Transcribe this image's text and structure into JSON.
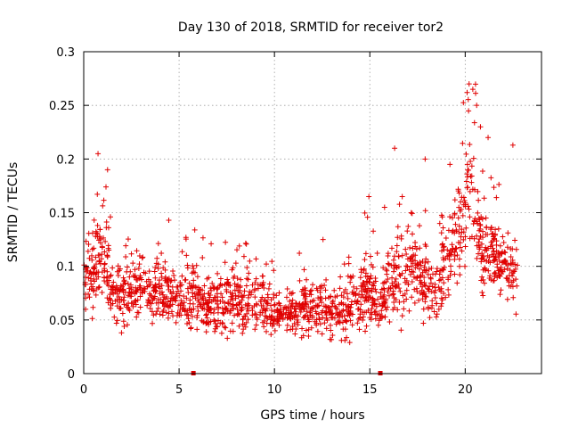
{
  "chart_data": {
    "type": "scatter",
    "title": "Day 130 of 2018, SRMTID for receiver tor2",
    "xlabel": "GPS time / hours",
    "ylabel": "SRMTID / TECUs",
    "xlim": [
      0,
      24
    ],
    "ylim": [
      0,
      0.3
    ],
    "xticks": [
      0,
      5,
      10,
      15,
      20
    ],
    "xtick_labels": [
      "0",
      "5",
      "10",
      "15",
      "20"
    ],
    "yticks": [
      0,
      0.05,
      0.1,
      0.15,
      0.2,
      0.25,
      0.3
    ],
    "ytick_labels": [
      "0",
      "0.05",
      "0.1",
      "0.15",
      "0.2",
      "0.25",
      "0.3"
    ],
    "grid": true,
    "marker": "+",
    "color": "#e00000",
    "x_range_of_data": [
      0,
      22.75
    ],
    "gap_markers": [
      {
        "x": 5.75,
        "y": 0
      },
      {
        "x": 15.55,
        "y": 0
      }
    ],
    "envelope": [
      {
        "t": 0.0,
        "mean": 0.085,
        "spread": 0.035
      },
      {
        "t": 0.5,
        "mean": 0.095,
        "spread": 0.045
      },
      {
        "t": 1.0,
        "mean": 0.11,
        "spread": 0.06
      },
      {
        "t": 1.5,
        "mean": 0.075,
        "spread": 0.035
      },
      {
        "t": 2.0,
        "mean": 0.075,
        "spread": 0.04
      },
      {
        "t": 3.0,
        "mean": 0.08,
        "spread": 0.04
      },
      {
        "t": 4.0,
        "mean": 0.078,
        "spread": 0.04
      },
      {
        "t": 5.0,
        "mean": 0.072,
        "spread": 0.035
      },
      {
        "t": 6.0,
        "mean": 0.068,
        "spread": 0.035
      },
      {
        "t": 7.0,
        "mean": 0.062,
        "spread": 0.035
      },
      {
        "t": 8.0,
        "mean": 0.068,
        "spread": 0.04
      },
      {
        "t": 9.0,
        "mean": 0.068,
        "spread": 0.035
      },
      {
        "t": 10.0,
        "mean": 0.058,
        "spread": 0.03
      },
      {
        "t": 11.0,
        "mean": 0.058,
        "spread": 0.03
      },
      {
        "t": 12.0,
        "mean": 0.062,
        "spread": 0.035
      },
      {
        "t": 13.0,
        "mean": 0.055,
        "spread": 0.03
      },
      {
        "t": 14.0,
        "mean": 0.062,
        "spread": 0.035
      },
      {
        "t": 15.0,
        "mean": 0.078,
        "spread": 0.045
      },
      {
        "t": 15.5,
        "mean": 0.065,
        "spread": 0.03
      },
      {
        "t": 16.0,
        "mean": 0.085,
        "spread": 0.05
      },
      {
        "t": 17.0,
        "mean": 0.095,
        "spread": 0.05
      },
      {
        "t": 18.0,
        "mean": 0.085,
        "spread": 0.045
      },
      {
        "t": 18.5,
        "mean": 0.075,
        "spread": 0.045
      },
      {
        "t": 19.0,
        "mean": 0.105,
        "spread": 0.05
      },
      {
        "t": 19.5,
        "mean": 0.125,
        "spread": 0.055
      },
      {
        "t": 20.0,
        "mean": 0.15,
        "spread": 0.065
      },
      {
        "t": 20.3,
        "mean": 0.175,
        "spread": 0.07
      },
      {
        "t": 20.7,
        "mean": 0.14,
        "spread": 0.06
      },
      {
        "t": 21.0,
        "mean": 0.11,
        "spread": 0.045
      },
      {
        "t": 21.5,
        "mean": 0.115,
        "spread": 0.045
      },
      {
        "t": 22.0,
        "mean": 0.095,
        "spread": 0.04
      },
      {
        "t": 22.75,
        "mean": 0.09,
        "spread": 0.04
      }
    ],
    "notable_peaks": [
      {
        "x": 0.75,
        "y": 0.205
      },
      {
        "x": 16.3,
        "y": 0.21
      },
      {
        "x": 17.9,
        "y": 0.2
      },
      {
        "x": 20.1,
        "y": 0.262
      },
      {
        "x": 20.4,
        "y": 0.265
      },
      {
        "x": 20.6,
        "y": 0.25
      },
      {
        "x": 22.5,
        "y": 0.213
      },
      {
        "x": 1.25,
        "y": 0.19
      },
      {
        "x": 20.8,
        "y": 0.23
      },
      {
        "x": 21.2,
        "y": 0.22
      },
      {
        "x": 14.95,
        "y": 0.165
      },
      {
        "x": 16.7,
        "y": 0.165
      },
      {
        "x": 19.2,
        "y": 0.195
      }
    ]
  }
}
